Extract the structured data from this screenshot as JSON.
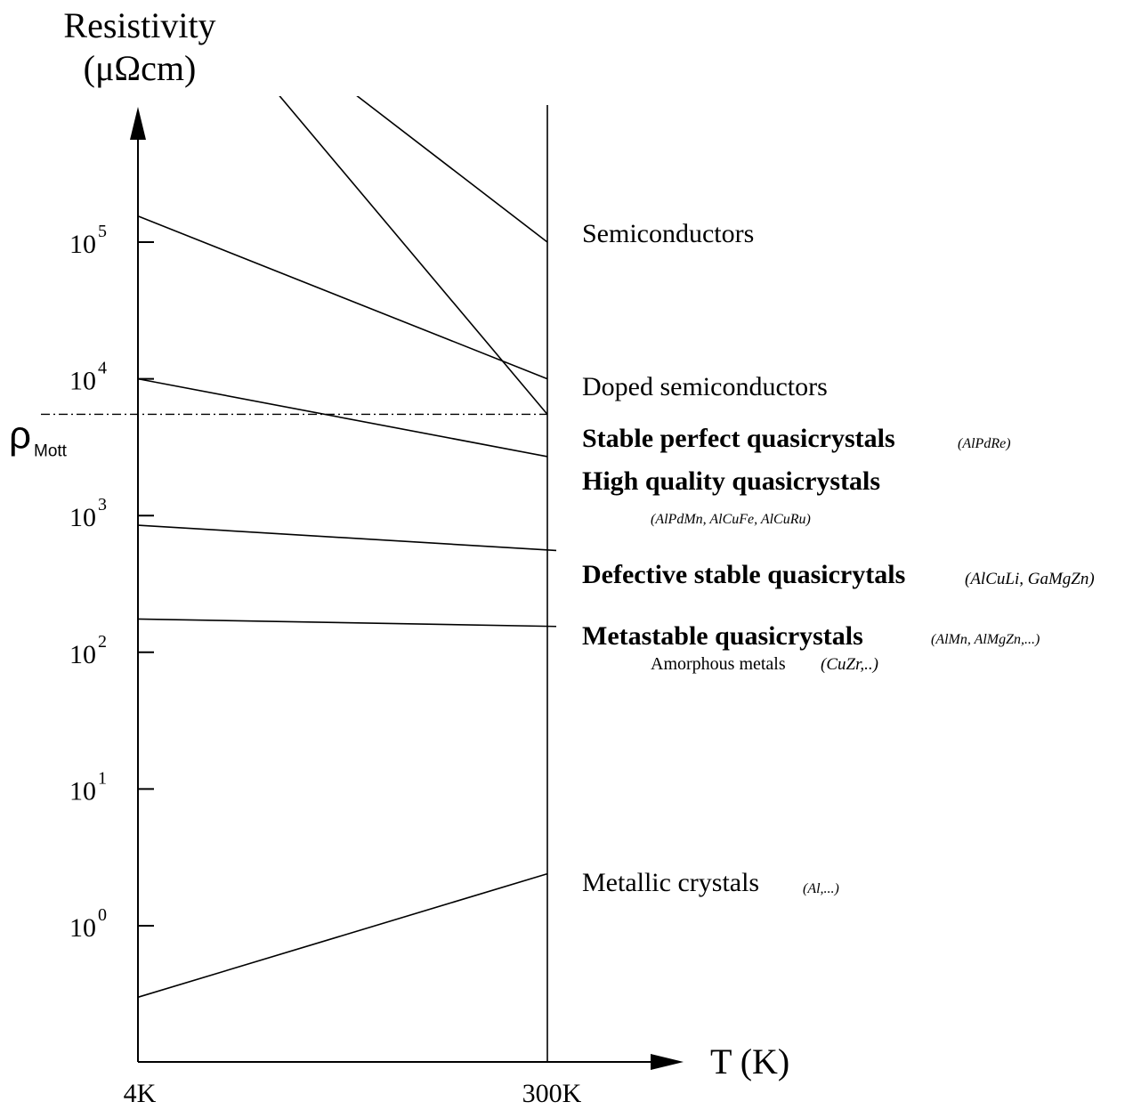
{
  "chart_data": {
    "type": "line",
    "title": "",
    "ylabel": "Resistivity",
    "yunit": "(μΩcm)",
    "xlabel": "T  (K)",
    "yscale": "log",
    "x_ticks": [
      "4K",
      "300K"
    ],
    "y_ticks": [
      {
        "base": "10",
        "exp": "0",
        "value": 1
      },
      {
        "base": "10",
        "exp": "1",
        "value": 10
      },
      {
        "base": "10",
        "exp": "2",
        "value": 100
      },
      {
        "base": "10",
        "exp": "3",
        "value": 1000
      },
      {
        "base": "10",
        "exp": "4",
        "value": 10000
      },
      {
        "base": "10",
        "exp": "5",
        "value": 100000
      }
    ],
    "mott": {
      "symbol": "ρ",
      "subscript": "Mott",
      "value": 5500
    },
    "series": [
      {
        "id": "semi-a",
        "points": [
          [
            4,
            20000000
          ],
          [
            300,
            5500
          ]
        ]
      },
      {
        "id": "semi-b",
        "points": [
          [
            4,
            20000000
          ],
          [
            300,
            100000
          ]
        ]
      },
      {
        "id": "doped",
        "points": [
          [
            4,
            155000
          ],
          [
            300,
            10000
          ]
        ]
      },
      {
        "id": "stable-perfect",
        "points": [
          [
            4,
            10000
          ],
          [
            300,
            2700
          ]
        ]
      },
      {
        "id": "defective",
        "points": [
          [
            4,
            850
          ],
          [
            300,
            560
          ]
        ]
      },
      {
        "id": "metastable",
        "points": [
          [
            4,
            175
          ],
          [
            300,
            155
          ]
        ]
      },
      {
        "id": "metallic",
        "points": [
          [
            4,
            0.3
          ],
          [
            300,
            2.4
          ]
        ]
      }
    ],
    "categories": [
      {
        "id": "semiconductors",
        "label": "Semiconductors",
        "examples": ""
      },
      {
        "id": "doped",
        "label": "Doped semiconductors",
        "examples": ""
      },
      {
        "id": "stable-perfect",
        "label": "Stable perfect quasicrystals",
        "examples": "(AlPdRe)"
      },
      {
        "id": "high-quality",
        "label": "High quality quasicrystals",
        "examples": "(AlPdMn, AlCuFe, AlCuRu)"
      },
      {
        "id": "defective",
        "label": "Defective stable quasicrytals",
        "examples": "(AlCuLi, GaMgZn)"
      },
      {
        "id": "metastable",
        "label": "Metastable quasicrystals",
        "examples": "(AlMn, AlMgZn,...)"
      },
      {
        "id": "amorphous",
        "label": "Amorphous metals",
        "examples": "(CuZr,..)"
      },
      {
        "id": "metallic",
        "label": "Metallic crystals",
        "examples": "(Al,...)"
      }
    ]
  }
}
